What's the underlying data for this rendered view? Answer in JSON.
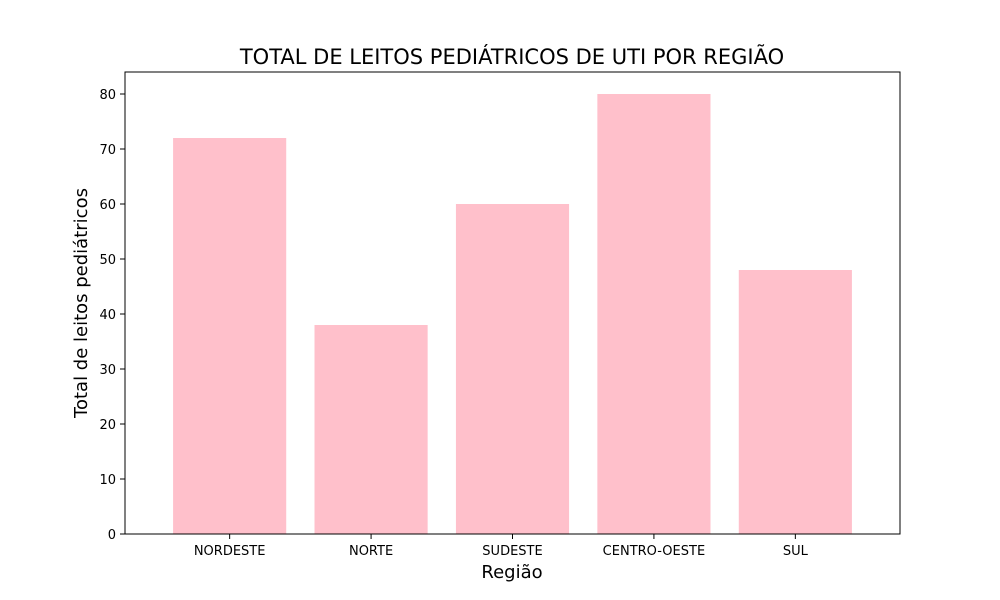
{
  "chart_data": {
    "type": "bar",
    "title": "TOTAL DE LEITOS PEDIÁTRICOS DE UTI POR REGIÃO",
    "xlabel": "Região",
    "ylabel": "Total de leitos pediátricos",
    "categories": [
      "NORDESTE",
      "NORTE",
      "SUDESTE",
      "CENTRO-OESTE",
      "SUL"
    ],
    "values": [
      72,
      38,
      60,
      80,
      48
    ],
    "ylim": [
      0,
      84
    ],
    "yticks": [
      0,
      10,
      20,
      30,
      40,
      50,
      60,
      70,
      80
    ],
    "bar_color": "#ffc0cb",
    "grid": false,
    "legend": "none"
  }
}
